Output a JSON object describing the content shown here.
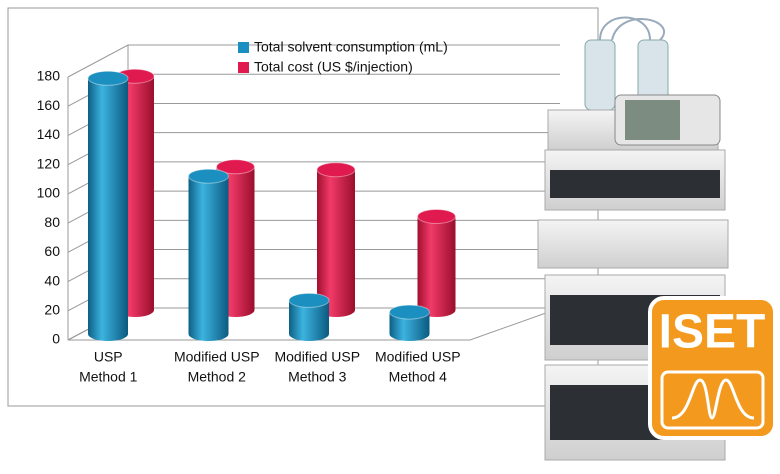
{
  "chart_data": {
    "type": "bar3d",
    "categories": [
      [
        "USP",
        "Method 1"
      ],
      [
        "Modified USP",
        "Method 2"
      ],
      [
        "Modified USP",
        "Method  3"
      ],
      [
        "Modified USP",
        "Method  4"
      ]
    ],
    "series": [
      {
        "name": "Total solvent consumption (mL)",
        "color": "#1a8fc0",
        "values": [
          175,
          108,
          23,
          15
        ]
      },
      {
        "name": "Total cost (US $/injection)",
        "color": "#e0194f",
        "values": [
          160,
          98,
          96,
          64
        ]
      }
    ],
    "ylim": [
      0,
      180
    ],
    "yticks": [
      0,
      20,
      40,
      60,
      80,
      100,
      120,
      140,
      160,
      180
    ],
    "grid": true
  },
  "logo": {
    "text": "ISET"
  }
}
